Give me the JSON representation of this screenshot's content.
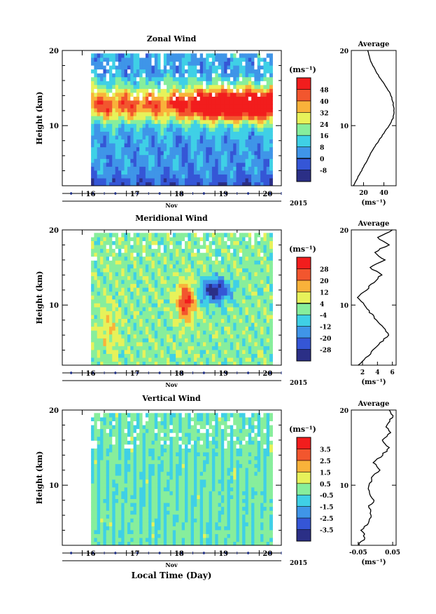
{
  "chart_data": [
    {
      "type": "heatmap",
      "title": "Zonal Wind",
      "ylabel": "Height (km)",
      "y_ticks": [
        "20",
        "10"
      ],
      "ylim": [
        2,
        20
      ],
      "x_ticks": [
        "16",
        "17",
        "18",
        "19",
        "20"
      ],
      "xlim": [
        15.55,
        20.5
      ],
      "month_label": "Nov",
      "year_label": "2015",
      "colorbar_unit": "(ms⁻¹)",
      "colorbar_levels": [
        -8,
        0,
        8,
        16,
        24,
        32,
        40,
        48
      ],
      "colorbar_labels": [
        "48",
        "40",
        "32",
        "24",
        "16",
        "8",
        "0",
        "-8"
      ],
      "average": {
        "title": "Average",
        "x_ticks": [
          "20",
          "40"
        ],
        "xlim": [
          8,
          52
        ],
        "xlabel": "(ms⁻¹)",
        "heights": [
          2,
          3,
          4,
          5,
          6,
          7,
          8,
          9,
          10,
          11,
          12,
          13,
          14,
          15,
          16,
          17,
          18,
          19,
          20
        ],
        "values": [
          10,
          14,
          18,
          22,
          26,
          30,
          35,
          40,
          45,
          49,
          50,
          49,
          47,
          43,
          38,
          33,
          29,
          26,
          24
        ]
      }
    },
    {
      "type": "heatmap",
      "title": "Meridional Wind",
      "ylabel": "Height (km)",
      "y_ticks": [
        "20",
        "10"
      ],
      "ylim": [
        2,
        20
      ],
      "x_ticks": [
        "16",
        "17",
        "18",
        "19",
        "20"
      ],
      "xlim": [
        15.55,
        20.5
      ],
      "month_label": "Nov",
      "year_label": "2015",
      "colorbar_unit": "(ms⁻¹)",
      "colorbar_levels": [
        -28,
        -20,
        -12,
        -4,
        4,
        12,
        20,
        28
      ],
      "colorbar_labels": [
        "28",
        "20",
        "12",
        "4",
        "-4",
        "-12",
        "-20",
        "-28"
      ],
      "average": {
        "title": "Average",
        "x_ticks": [
          "2",
          "4",
          "6"
        ],
        "xlim": [
          0.5,
          6.5
        ],
        "xlabel": "(ms⁻¹)",
        "heights": [
          2,
          3,
          4,
          5,
          6,
          7,
          8,
          9,
          10,
          11,
          12,
          13,
          14,
          15,
          16,
          17,
          18,
          19,
          20
        ],
        "values": [
          1.5,
          2.5,
          3.5,
          4.5,
          5.5,
          4.8,
          3.8,
          3.0,
          2.2,
          1.5,
          2.4,
          3.5,
          4.5,
          3.0,
          5.0,
          3.5,
          5.5,
          4.0,
          6.0
        ]
      }
    },
    {
      "type": "heatmap",
      "title": "Vertical Wind",
      "xlabel": "Local Time (Day)",
      "ylabel": "Height (km)",
      "y_ticks": [
        "20",
        "10"
      ],
      "ylim": [
        2,
        20
      ],
      "x_ticks": [
        "16",
        "17",
        "18",
        "19",
        "20"
      ],
      "xlim": [
        15.55,
        20.5
      ],
      "month_label": "Nov",
      "year_label": "2015",
      "colorbar_unit": "(ms⁻¹)",
      "colorbar_levels": [
        -3.5,
        -2.5,
        -1.5,
        -0.5,
        0.5,
        1.5,
        2.5,
        3.5
      ],
      "colorbar_labels": [
        "3.5",
        "2.5",
        "1.5",
        "0.5",
        "-0.5",
        "-1.5",
        "-2.5",
        "-3.5"
      ],
      "average": {
        "title": "Average",
        "x_ticks": [
          "-0.05",
          "0.05"
        ],
        "xlim": [
          -0.07,
          0.06
        ],
        "xlabel": "(ms⁻¹)",
        "heights": [
          2,
          3,
          4,
          5,
          6,
          7,
          8,
          9,
          10,
          11,
          12,
          13,
          14,
          15,
          16,
          17,
          18,
          19,
          20
        ],
        "values": [
          -0.05,
          -0.03,
          -0.04,
          -0.02,
          -0.01,
          -0.02,
          -0.005,
          -0.02,
          -0.015,
          -0.01,
          0.01,
          -0.005,
          0.02,
          0.04,
          0.02,
          0.045,
          0.03,
          0.05,
          0.04
        ]
      }
    }
  ]
}
